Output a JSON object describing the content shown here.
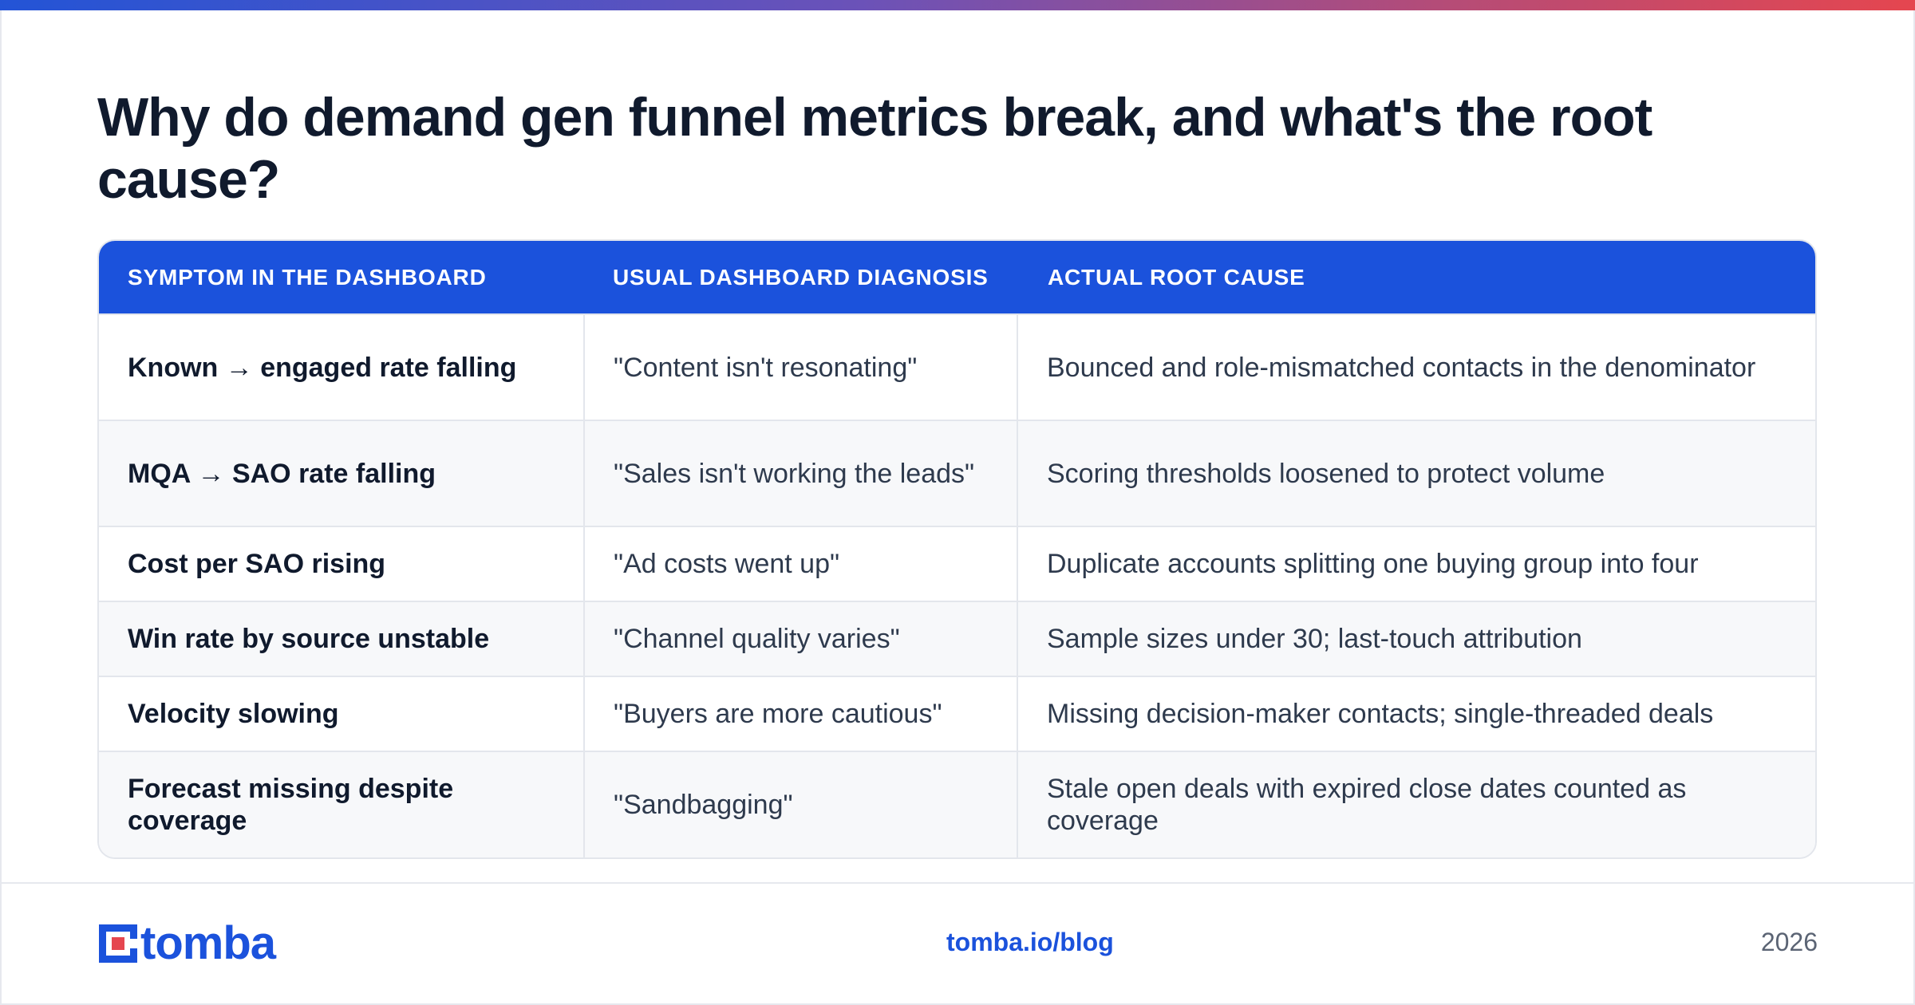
{
  "title": "Why do demand gen funnel metrics break, and what's the root cause?",
  "table": {
    "headers": [
      "SYMPTOM IN THE DASHBOARD",
      "USUAL DASHBOARD DIAGNOSIS",
      "ACTUAL ROOT CAUSE"
    ],
    "rows": [
      {
        "symptom": "Known → engaged rate falling",
        "diagnosis": "\"Content isn't resonating\"",
        "cause": "Bounced and role-mismatched contacts in the denominator"
      },
      {
        "symptom": "MQA → SAO rate falling",
        "diagnosis": "\"Sales isn't working the leads\"",
        "cause": "Scoring thresholds loosened to protect volume"
      },
      {
        "symptom": "Cost per SAO rising",
        "diagnosis": "\"Ad costs went up\"",
        "cause": "Duplicate accounts splitting one buying group into four"
      },
      {
        "symptom": "Win rate by source unstable",
        "diagnosis": "\"Channel quality varies\"",
        "cause": "Sample sizes under 30; last-touch attribution"
      },
      {
        "symptom": "Velocity slowing",
        "diagnosis": "\"Buyers are more cautious\"",
        "cause": "Missing decision-maker contacts; single-threaded deals"
      },
      {
        "symptom": "Forecast missing despite coverage",
        "diagnosis": "\"Sandbagging\"",
        "cause": "Stale open deals with expired close dates counted as coverage"
      }
    ]
  },
  "footer": {
    "logo_text": "tomba",
    "link": "tomba.io/blog",
    "year": "2026"
  },
  "colors": {
    "accent": "#1b52dc",
    "title": "#101a2d",
    "logo_red": "#e5464f"
  }
}
